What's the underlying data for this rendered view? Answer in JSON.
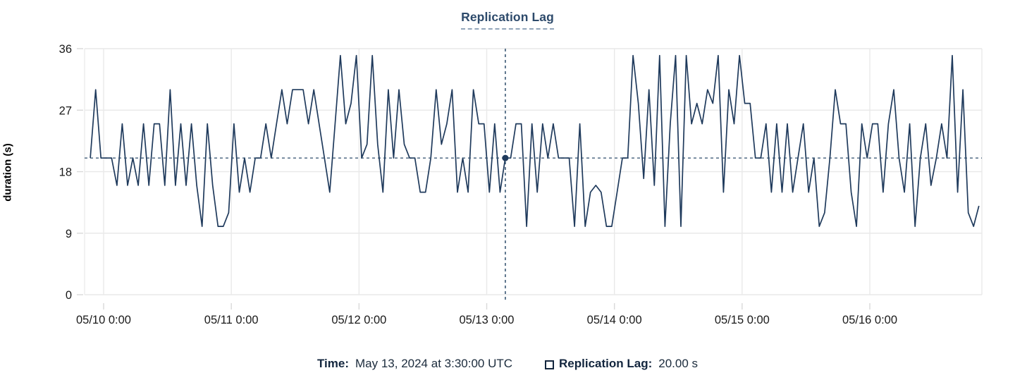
{
  "title": "Replication Lag",
  "colors": {
    "series": "#1f3a5c",
    "crosshair": "#2e4d6b",
    "grid": "#e9e9e9",
    "tick": "#d9d9d9",
    "tick_text": "#1a1a1a",
    "title_text": "#2d4a6b",
    "legend_label_text": "#13263e"
  },
  "y_axis": {
    "label": "duration (s)"
  },
  "tooltip": {
    "time_label": "Time:",
    "time_value": "May 13, 2024 at 3:30:00 UTC",
    "series_label": "Replication Lag:",
    "series_value": "20.00 s"
  },
  "chart_data": {
    "type": "line",
    "title": "Replication Lag",
    "xlabel": "",
    "ylabel": "duration (s)",
    "ylim": [
      0,
      36
    ],
    "y_ticks": [
      0,
      9,
      18,
      27,
      36
    ],
    "x_tick_labels": [
      "05/10 0:00",
      "05/11 0:00",
      "05/12 0:00",
      "05/13 0:00",
      "05/14 0:00",
      "05/15 0:00",
      "05/16 0:00"
    ],
    "grid": true,
    "legend_position": "bottom",
    "x_start": "2024-05-09T21:30:00Z",
    "x_interval": "1 hour",
    "series": [
      {
        "name": "Replication Lag",
        "unit": "s",
        "values": [
          20,
          30,
          20,
          20,
          20,
          16,
          25,
          16,
          20,
          16,
          25,
          16,
          25,
          25,
          16,
          30,
          16,
          25,
          16,
          25,
          16,
          10,
          25,
          16,
          10,
          10,
          12,
          25,
          15,
          20,
          15,
          20,
          20,
          25,
          20,
          25,
          30,
          25,
          30,
          30,
          30,
          25,
          30,
          25,
          20,
          15,
          25,
          35,
          25,
          28,
          35,
          20,
          22,
          35,
          22,
          15,
          30,
          20,
          30,
          22,
          20,
          20,
          15,
          15,
          20,
          30,
          22,
          25,
          30,
          15,
          20,
          15,
          30,
          25,
          25,
          15,
          25,
          15,
          20,
          20,
          25,
          25,
          10,
          25,
          15,
          25,
          20,
          25,
          20,
          20,
          20,
          10,
          25,
          10,
          15,
          16,
          15,
          10,
          10,
          15,
          20,
          20,
          35,
          28,
          17,
          30,
          16,
          35,
          10,
          25,
          35,
          10,
          35,
          25,
          28,
          25,
          30,
          28,
          35,
          15,
          30,
          25,
          35,
          28,
          28,
          20,
          20,
          25,
          15,
          25,
          15,
          25,
          15,
          20,
          25,
          15,
          20,
          10,
          12,
          20,
          30,
          25,
          25,
          15,
          10,
          25,
          20,
          25,
          25,
          15,
          25,
          30,
          20,
          15,
          25,
          10,
          20,
          25,
          16,
          20,
          25,
          20,
          35,
          15,
          30,
          12,
          10,
          13
        ]
      }
    ],
    "crosshair": {
      "index": 78,
      "value": 20,
      "time": "May 13, 2024 at 3:30:00 UTC",
      "value_label": "20.00 s"
    }
  }
}
